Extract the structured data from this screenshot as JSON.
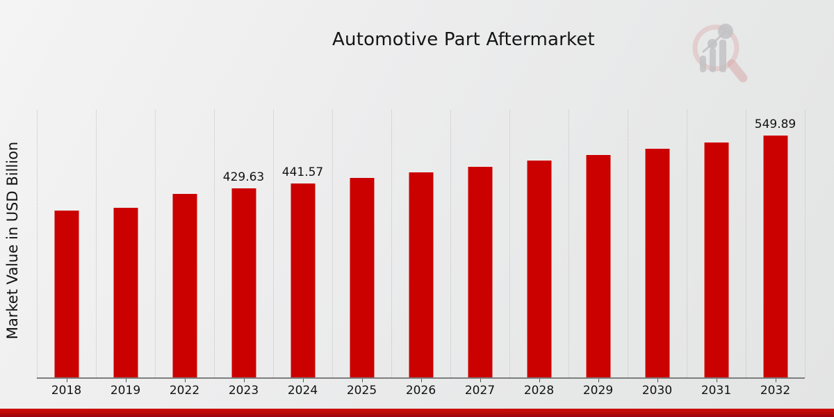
{
  "page": {
    "title": "Automotive Part Aftermarket"
  },
  "chart_data": {
    "type": "bar",
    "title": "Automotive Part Aftermarket",
    "xlabel": "",
    "ylabel": "Market Value in USD Billion",
    "units": "USD Billion",
    "bar_color": "#cb0100",
    "grid": "vertical dotted gridlines between categories, no horizontal grid, no y-axis ticks",
    "legend": "none",
    "ylim": [
      0,
      610
    ],
    "categories": [
      "2018",
      "2019",
      "2022",
      "2023",
      "2024",
      "2025",
      "2026",
      "2027",
      "2028",
      "2029",
      "2030",
      "2031",
      "2032"
    ],
    "points": [
      {
        "category": "2018",
        "value": 379.6,
        "data_label": ""
      },
      {
        "category": "2019",
        "value": 386.6,
        "data_label": ""
      },
      {
        "category": "2022",
        "value": 418.0,
        "data_label": ""
      },
      {
        "category": "2023",
        "value": 429.63,
        "data_label": "429.63"
      },
      {
        "category": "2024",
        "value": 441.57,
        "data_label": "441.57"
      },
      {
        "category": "2025",
        "value": 453.9,
        "data_label": ""
      },
      {
        "category": "2026",
        "value": 466.5,
        "data_label": ""
      },
      {
        "category": "2027",
        "value": 479.4,
        "data_label": ""
      },
      {
        "category": "2028",
        "value": 492.8,
        "data_label": ""
      },
      {
        "category": "2029",
        "value": 506.5,
        "data_label": ""
      },
      {
        "category": "2030",
        "value": 520.6,
        "data_label": ""
      },
      {
        "category": "2031",
        "value": 535.0,
        "data_label": ""
      },
      {
        "category": "2032",
        "value": 549.89,
        "data_label": "549.89"
      }
    ]
  },
  "branding": {
    "logo_icon": "magnifier-bar-chart-logo",
    "logo_ring_color": "#dcb3b3",
    "logo_bars_color": "#b9b9bd"
  },
  "footer": {
    "accent_band_color": "#b90907"
  }
}
